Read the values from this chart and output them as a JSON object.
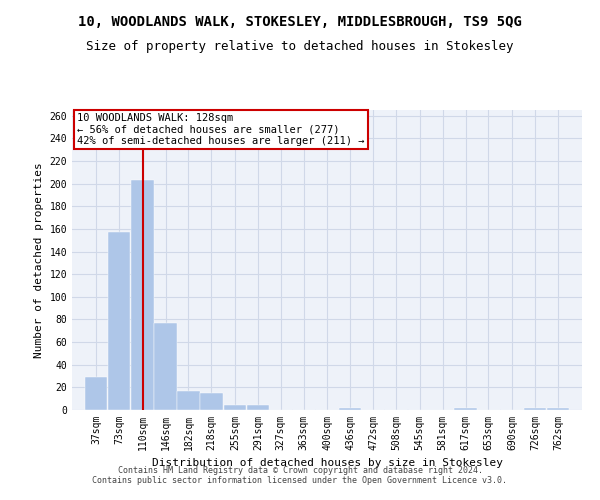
{
  "title": "10, WOODLANDS WALK, STOKESLEY, MIDDLESBROUGH, TS9 5QG",
  "subtitle": "Size of property relative to detached houses in Stokesley",
  "xlabel": "Distribution of detached houses by size in Stokesley",
  "ylabel": "Number of detached properties",
  "footer_line1": "Contains HM Land Registry data © Crown copyright and database right 2024.",
  "footer_line2": "Contains public sector information licensed under the Open Government Licence v3.0.",
  "annotation_line1": "10 WOODLANDS WALK: 128sqm",
  "annotation_line2": "← 56% of detached houses are smaller (277)",
  "annotation_line3": "42% of semi-detached houses are larger (211) →",
  "property_size": 128,
  "bar_color": "#aec6e8",
  "vline_color": "#cc0000",
  "annotation_box_color": "#cc0000",
  "grid_color": "#d0d8e8",
  "bg_color": "#eef2f9",
  "categories": [
    "37sqm",
    "73sqm",
    "110sqm",
    "146sqm",
    "182sqm",
    "218sqm",
    "255sqm",
    "291sqm",
    "327sqm",
    "363sqm",
    "400sqm",
    "436sqm",
    "472sqm",
    "508sqm",
    "545sqm",
    "581sqm",
    "617sqm",
    "653sqm",
    "690sqm",
    "726sqm",
    "762sqm"
  ],
  "values": [
    29,
    157,
    203,
    77,
    17,
    15,
    4,
    4,
    0,
    0,
    0,
    2,
    0,
    0,
    0,
    0,
    2,
    0,
    0,
    2,
    2
  ],
  "bin_edges": [
    37,
    73,
    110,
    146,
    182,
    218,
    255,
    291,
    327,
    363,
    400,
    436,
    472,
    508,
    545,
    581,
    617,
    653,
    690,
    726,
    762,
    798
  ],
  "ylim": [
    0,
    265
  ],
  "yticks": [
    0,
    20,
    40,
    60,
    80,
    100,
    120,
    140,
    160,
    180,
    200,
    220,
    240,
    260
  ],
  "title_fontsize": 10,
  "subtitle_fontsize": 9,
  "ylabel_fontsize": 8,
  "xlabel_fontsize": 8,
  "tick_fontsize": 7,
  "footer_fontsize": 6,
  "ann_fontsize": 7.5
}
